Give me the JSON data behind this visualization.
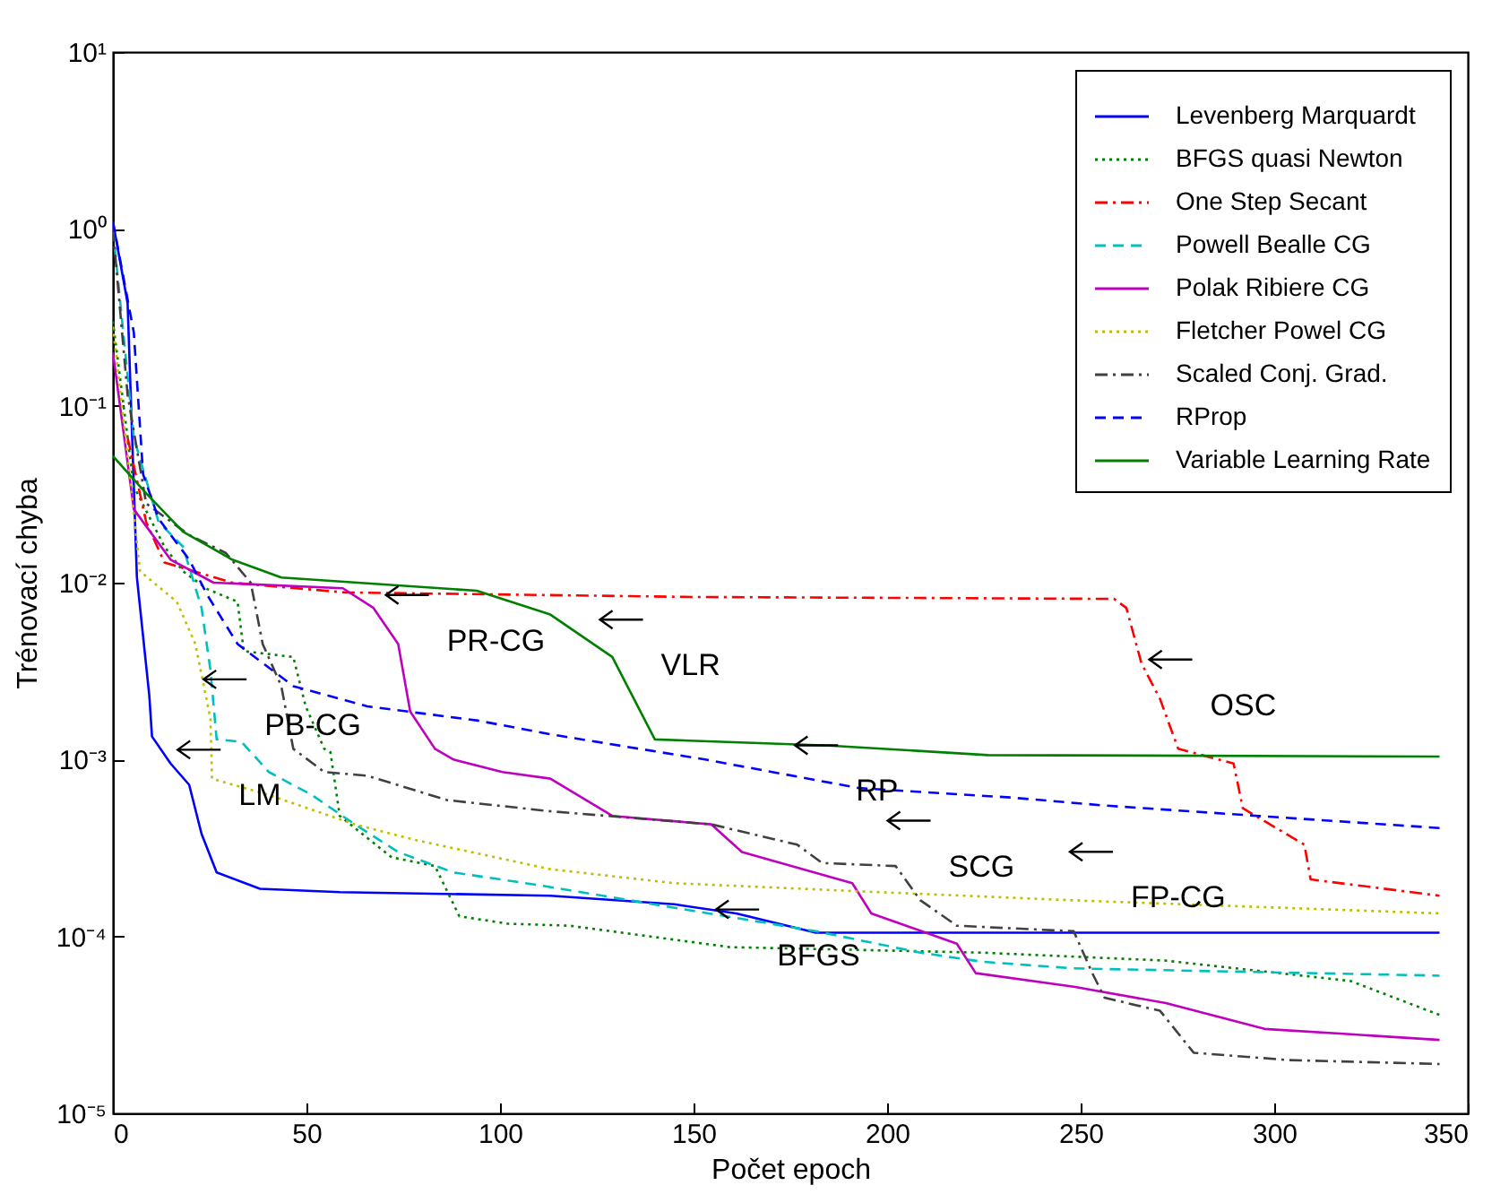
{
  "chart_data": {
    "type": "line",
    "xlabel": "Počet epoch",
    "ylabel": "Trénovací chyba",
    "log": true,
    "grid": false,
    "legend": "top right",
    "marker": "none",
    "xlim": [
      0,
      350
    ],
    "xticks": [
      0,
      50,
      100,
      150,
      200,
      250,
      300,
      350
    ],
    "ylim": [
      1e-05,
      10
    ],
    "yticks": [
      {
        "value": 1e-05,
        "label": "10⁻⁵"
      },
      {
        "value": 0.0001,
        "label": "10⁻⁴"
      },
      {
        "value": 0.001,
        "label": "10⁻³"
      },
      {
        "value": 0.01,
        "label": "10⁻²"
      },
      {
        "value": 0.1,
        "label": "10⁻¹"
      },
      {
        "value": 1,
        "label": "10⁰"
      },
      {
        "value": 10,
        "label": "10¹"
      }
    ],
    "series": [
      {
        "name": "Levenberg Marquardt",
        "color": "#0000ff",
        "line_style": "solid",
        "x": [
          0,
          3.8,
          6.2,
          9.4,
          10.1,
          14.9,
          19.7,
          22.9,
          26.8,
          38,
          58.6,
          113,
          145,
          161,
          181.6,
          342.7
        ],
        "values": [
          1.1,
          0.38,
          0.0107,
          0.0023,
          0.00135,
          0.00095,
          0.00072,
          0.00038,
          0.00023,
          0.000186,
          0.000178,
          0.00017,
          0.000152,
          0.000135,
          0.000105,
          0.000105
        ]
      },
      {
        "name": "BFGS quasi Newton",
        "color": "#008000",
        "line_style": "dotted",
        "x": [
          0,
          5.4,
          13.3,
          18.1,
          24.4,
          32.2,
          33.8,
          46.6,
          49.8,
          54.6,
          56.2,
          58.6,
          72,
          83.2,
          89.5,
          102,
          118,
          159.4,
          224.4,
          272,
          319.7,
          342.7
        ],
        "values": [
          0.3,
          0.035,
          0.016,
          0.0116,
          0.0092,
          0.0078,
          0.0041,
          0.0038,
          0.002,
          0.00115,
          0.0011,
          0.00048,
          0.00028,
          0.00025,
          0.00013,
          0.000118,
          0.000115,
          8.7e-05,
          8.1e-05,
          7.3e-05,
          5.6e-05,
          3.6e-05
        ]
      },
      {
        "name": "One Step Secant",
        "color": "#ff0000",
        "line_style": "dashdot",
        "x": [
          3.8,
          8.6,
          13.3,
          30.8,
          60,
          150,
          258.6,
          261.8,
          265.7,
          270.5,
          275.2,
          289.5,
          291.9,
          307.8,
          309.4,
          342.7
        ],
        "values": [
          0.066,
          0.022,
          0.013,
          0.01,
          0.0088,
          0.0083,
          0.0081,
          0.0072,
          0.0035,
          0.0022,
          0.00115,
          0.00095,
          0.00053,
          0.00033,
          0.00021,
          0.00017
        ]
      },
      {
        "name": "Powell Bealle CG",
        "color": "#00bfbf",
        "line_style": "dashed",
        "x": [
          0,
          5.4,
          11.8,
          18.1,
          22.9,
          25.2,
          26.8,
          33.2,
          40.3,
          51.4,
          62.5,
          73.7,
          88,
          110,
          181.6,
          208.6,
          224.4,
          248,
          342.7
        ],
        "values": [
          1,
          0.066,
          0.022,
          0.016,
          0.0072,
          0.0032,
          0.0013,
          0.00126,
          0.00085,
          0.00063,
          0.00043,
          0.0003,
          0.00023,
          0.000195,
          0.000107,
          8.1e-05,
          7.2e-05,
          6.6e-05,
          6e-05
        ]
      },
      {
        "name": "Polak Ribiere CG",
        "color": "#bf00bf",
        "line_style": "solid",
        "x": [
          0,
          5.4,
          14.9,
          26,
          59.4,
          67.3,
          73.7,
          76.8,
          83.2,
          88,
          100.6,
          113,
          129,
          154.6,
          162.5,
          191,
          195.9,
          218,
          222.9,
          248.2,
          272,
          297.5,
          319.7,
          342.7
        ],
        "values": [
          0.2,
          0.026,
          0.0135,
          0.01,
          0.0093,
          0.0072,
          0.0045,
          0.00187,
          0.00115,
          0.001,
          0.00085,
          0.00078,
          0.00048,
          0.00043,
          0.0003,
          0.0002,
          0.000135,
          9.1e-05,
          6.2e-05,
          5.2e-05,
          4.2e-05,
          3e-05,
          2.8e-05,
          2.6e-05
        ]
      },
      {
        "name": "Fletcher Powel CG",
        "color": "#bfbf00",
        "line_style": "dotted",
        "x": [
          0,
          3.8,
          7,
          16.5,
          21.3,
          25.2,
          25.6,
          40.3,
          62.5,
          78.4,
          113,
          145,
          192.7,
          248,
          342.7
        ],
        "values": [
          0.28,
          0.052,
          0.0116,
          0.0078,
          0.0045,
          0.0017,
          0.00078,
          0.00063,
          0.00043,
          0.00035,
          0.00024,
          0.0002,
          0.00018,
          0.00016,
          0.000135
        ]
      },
      {
        "name": "Scaled Conj. Grad.",
        "color": "#404040",
        "line_style": "dashdot",
        "x": [
          0,
          3.8,
          8.6,
          19.7,
          29.2,
          35.6,
          38.7,
          43.5,
          46.6,
          54.6,
          65.7,
          86.3,
          113,
          154.6,
          176.8,
          183.2,
          202.2,
          208.6,
          218,
          248.2,
          253,
          256.2,
          270.5,
          279.2,
          303.8,
          342.7
        ],
        "values": [
          1,
          0.115,
          0.028,
          0.0186,
          0.0147,
          0.01,
          0.0045,
          0.0026,
          0.00115,
          0.00085,
          0.00081,
          0.00059,
          0.00051,
          0.00043,
          0.00033,
          0.00026,
          0.00025,
          0.00016,
          0.000115,
          0.000107,
          6.2e-05,
          4.5e-05,
          3.8e-05,
          2.2e-05,
          2e-05,
          1.9e-05
        ]
      },
      {
        "name": "RProp",
        "color": "#0000ff",
        "line_style": "dashed",
        "x": [
          0,
          5.4,
          7.8,
          11.8,
          19.7,
          24.4,
          32.2,
          46.6,
          65.7,
          94.3,
          113,
          153,
          192.7,
          232,
          256,
          295.9,
          342.7
        ],
        "values": [
          1.1,
          0.26,
          0.041,
          0.023,
          0.0135,
          0.0085,
          0.0045,
          0.0026,
          0.002,
          0.00166,
          0.00139,
          0.001,
          0.00069,
          0.00061,
          0.00055,
          0.00048,
          0.00041
        ]
      },
      {
        "name": "Variable Learning Rate",
        "color": "#008000",
        "line_style": "solid",
        "x": [
          0,
          8.6,
          18.1,
          30.8,
          43.5,
          94,
          113,
          129,
          140,
          185,
          226,
          342.7
        ],
        "values": [
          0.052,
          0.032,
          0.0194,
          0.0135,
          0.0107,
          0.009,
          0.0066,
          0.0038,
          0.0013,
          0.0012,
          0.00106,
          0.00104
        ]
      }
    ],
    "annotations": [
      {
        "text": "LM",
        "x": 19.5,
        "y": 0.00068
      },
      {
        "text": "PB-CG",
        "x": 26.2,
        "y": 0.0017
      },
      {
        "text": "PR-CG",
        "x": 73.3,
        "y": 0.0051
      },
      {
        "text": "VLR",
        "x": 128.6,
        "y": 0.0037
      },
      {
        "text": "OSC",
        "x": 270.5,
        "y": 0.0022
      },
      {
        "text": "RP",
        "x": 179,
        "y": 0.00072
      },
      {
        "text": "SCG",
        "x": 202.9,
        "y": 0.00027
      },
      {
        "text": "FP-CG",
        "x": 250,
        "y": 0.00018
      },
      {
        "text": "BFGS",
        "x": 158.6,
        "y": 8.5e-05
      }
    ]
  }
}
